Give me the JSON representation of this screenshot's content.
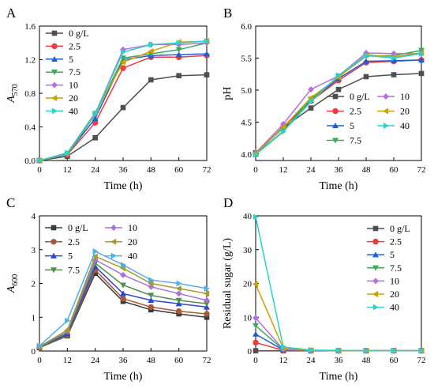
{
  "chart_data": [
    {
      "panel": "A",
      "type": "line",
      "xlabel": "Time (h)",
      "ylabel_main": "A",
      "ylabel_sub": "570",
      "xlim": [
        0,
        72
      ],
      "ylim": [
        0,
        1.6
      ],
      "xticks": [
        0,
        12,
        24,
        36,
        48,
        60,
        72
      ],
      "yticks": [
        "0.0",
        "0.4",
        "0.8",
        "1.2",
        "1.6"
      ],
      "x": [
        0,
        12,
        24,
        36,
        48,
        60,
        72
      ],
      "legend_position": "top-left",
      "series": [
        {
          "name": "0 g/L",
          "values": [
            0.0,
            0.05,
            0.27,
            0.63,
            0.96,
            1.01,
            1.02
          ]
        },
        {
          "name": "2.5",
          "values": [
            0.0,
            0.07,
            0.45,
            1.1,
            1.23,
            1.23,
            1.25
          ]
        },
        {
          "name": "5",
          "values": [
            0.0,
            0.08,
            0.5,
            1.2,
            1.25,
            1.26,
            1.27
          ]
        },
        {
          "name": "7.5",
          "values": [
            0.0,
            0.07,
            0.55,
            1.22,
            1.27,
            1.32,
            1.4
          ]
        },
        {
          "name": "10",
          "values": [
            0.0,
            0.08,
            0.56,
            1.32,
            1.38,
            1.38,
            1.4
          ]
        },
        {
          "name": "20",
          "values": [
            0.0,
            0.09,
            0.57,
            1.17,
            1.3,
            1.41,
            1.42
          ]
        },
        {
          "name": "40",
          "values": [
            0.0,
            0.09,
            0.56,
            1.29,
            1.38,
            1.4,
            1.42
          ]
        }
      ]
    },
    {
      "panel": "B",
      "type": "line",
      "xlabel": "Time (h)",
      "ylabel": "pH",
      "xlim": [
        0,
        72
      ],
      "ylim": [
        3.9,
        6.0
      ],
      "xticks": [
        0,
        12,
        24,
        36,
        48,
        60,
        72
      ],
      "yticks": [
        "4.0",
        "4.5",
        "5.0",
        "5.5",
        "6.0"
      ],
      "x": [
        0,
        12,
        24,
        36,
        48,
        60,
        72
      ],
      "legend_position": "bottom-right",
      "series": [
        {
          "name": "0 g/L",
          "values": [
            4.02,
            4.41,
            4.72,
            5.01,
            5.21,
            5.24,
            5.26
          ]
        },
        {
          "name": "2.5",
          "values": [
            4.01,
            4.42,
            4.83,
            5.15,
            5.43,
            5.45,
            5.47
          ]
        },
        {
          "name": "5",
          "values": [
            4.0,
            4.43,
            4.84,
            5.18,
            5.45,
            5.46,
            5.47
          ]
        },
        {
          "name": "7.5",
          "values": [
            4.0,
            4.36,
            4.86,
            5.21,
            5.53,
            5.54,
            5.62
          ]
        },
        {
          "name": "10",
          "values": [
            4.02,
            4.47,
            5.01,
            5.22,
            5.58,
            5.57,
            5.57
          ]
        },
        {
          "name": "20",
          "values": [
            4.01,
            4.42,
            4.88,
            5.2,
            5.55,
            5.52,
            5.58
          ]
        },
        {
          "name": "40",
          "values": [
            3.99,
            4.35,
            4.82,
            5.23,
            5.54,
            5.5,
            5.57
          ]
        }
      ]
    },
    {
      "panel": "C",
      "type": "line",
      "xlabel": "Time (h)",
      "ylabel_main": "A",
      "ylabel_sub": "600",
      "xlim": [
        0,
        72
      ],
      "ylim": [
        0,
        4
      ],
      "xticks": [
        0,
        12,
        24,
        36,
        48,
        60,
        72
      ],
      "yticks": [
        "0",
        "1",
        "2",
        "3",
        "4"
      ],
      "x": [
        0,
        12,
        24,
        36,
        48,
        60,
        72
      ],
      "legend_position": "top",
      "series": [
        {
          "name": "0 g/L",
          "values": [
            0.1,
            0.45,
            2.3,
            1.47,
            1.22,
            1.1,
            1.0
          ]
        },
        {
          "name": "2.5",
          "values": [
            0.1,
            0.47,
            2.4,
            1.55,
            1.3,
            1.18,
            1.1
          ]
        },
        {
          "name": "5",
          "values": [
            0.12,
            0.5,
            2.5,
            1.7,
            1.5,
            1.4,
            1.3
          ]
        },
        {
          "name": "7.5",
          "values": [
            0.12,
            0.55,
            2.6,
            1.95,
            1.65,
            1.5,
            1.4
          ]
        },
        {
          "name": "10",
          "values": [
            0.13,
            0.6,
            2.7,
            2.25,
            1.9,
            1.7,
            1.5
          ]
        },
        {
          "name": "20",
          "values": [
            0.13,
            0.62,
            2.8,
            2.45,
            2.0,
            1.85,
            1.7
          ]
        },
        {
          "name": "40",
          "values": [
            0.15,
            0.9,
            2.95,
            2.55,
            2.1,
            2.0,
            1.85
          ]
        }
      ]
    },
    {
      "panel": "D",
      "type": "line",
      "xlabel": "Time (h)",
      "ylabel": "Residual sugar (g/L)",
      "xlim": [
        0,
        72
      ],
      "ylim": [
        0,
        40
      ],
      "xticks": [
        0,
        12,
        24,
        36,
        48,
        60,
        72
      ],
      "yticks": [
        "0",
        "10",
        "20",
        "30",
        "40"
      ],
      "x": [
        0,
        12,
        24,
        36,
        48,
        60,
        72
      ],
      "legend_position": "right",
      "series": [
        {
          "name": "0 g/L",
          "values": [
            0.1,
            0.1,
            0.1,
            0.1,
            0.1,
            0.1,
            0.1
          ]
        },
        {
          "name": "2.5",
          "values": [
            2.5,
            0.2,
            0.1,
            0.1,
            0.1,
            0.1,
            0.1
          ]
        },
        {
          "name": "5",
          "values": [
            5.0,
            0.3,
            0.1,
            0.1,
            0.1,
            0.1,
            0.1
          ]
        },
        {
          "name": "7.5",
          "values": [
            7.5,
            0.4,
            0.2,
            0.1,
            0.1,
            0.1,
            0.1
          ]
        },
        {
          "name": "10",
          "values": [
            9.8,
            0.5,
            0.2,
            0.1,
            0.1,
            0.1,
            0.1
          ]
        },
        {
          "name": "20",
          "values": [
            19.8,
            0.8,
            0.2,
            0.1,
            0.1,
            0.1,
            0.1
          ]
        },
        {
          "name": "40",
          "values": [
            39.7,
            1.2,
            0.3,
            0.2,
            0.1,
            0.1,
            0.1
          ]
        }
      ]
    }
  ],
  "series_styles": [
    {
      "color": "#4f4f4f",
      "marker": "square"
    },
    {
      "color": "#ee3b3b",
      "marker": "circle"
    },
    {
      "color": "#1f5fd6",
      "marker": "triangle-up"
    },
    {
      "color": "#3aaa5c",
      "marker": "triangle-down"
    },
    {
      "color": "#b46ee6",
      "marker": "diamond"
    },
    {
      "color": "#c9a100",
      "marker": "triangle-left"
    },
    {
      "color": "#2ad2c9",
      "marker": "triangle-right"
    }
  ],
  "series_styles_panel_C": [
    {
      "color": "#3a3a3a",
      "marker": "square"
    },
    {
      "color": "#a65a3a",
      "marker": "circle"
    },
    {
      "color": "#2a46d6",
      "marker": "triangle-up"
    },
    {
      "color": "#4f8f4f",
      "marker": "triangle-down"
    },
    {
      "color": "#a873e0",
      "marker": "diamond"
    },
    {
      "color": "#a89a2a",
      "marker": "triangle-left"
    },
    {
      "color": "#4fb0e6",
      "marker": "triangle-right"
    }
  ]
}
